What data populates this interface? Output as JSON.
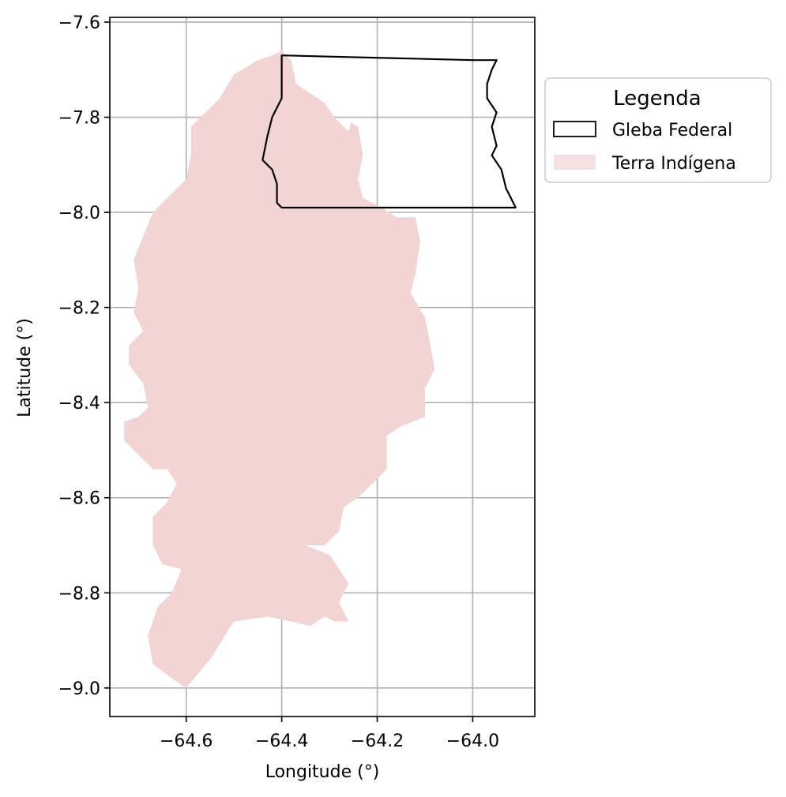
{
  "chart_data": {
    "type": "map",
    "xlabel": "Longitude (°)",
    "ylabel": "Latitude (°)",
    "xlim": [
      -64.76,
      -63.87
    ],
    "ylim": [
      -9.06,
      -7.59
    ],
    "x_ticks": [
      -64.6,
      -64.4,
      -64.2,
      -64.0
    ],
    "y_ticks": [
      -7.6,
      -7.8,
      -8.0,
      -8.2,
      -8.4,
      -8.6,
      -8.8,
      -9.0
    ],
    "x_tick_labels": [
      "−64.6",
      "−64.4",
      "−64.2",
      "−64.0"
    ],
    "y_tick_labels": [
      "−7.6",
      "−7.8",
      "−8.0",
      "−8.2",
      "−8.4",
      "−8.6",
      "−8.8",
      "−9.0"
    ],
    "grid": true,
    "legend": {
      "title": "Legenda",
      "placement": "outside-right-top",
      "entries": [
        {
          "label": "Gleba Federal",
          "style": "outline",
          "color": "#000000"
        },
        {
          "label": "Terra Indígena",
          "style": "fill",
          "color": "#f2d4d4"
        }
      ]
    },
    "layers": [
      {
        "name": "Terra Indígena",
        "fill": "#f2d4d4",
        "coordinates": [
          [
            -64.4,
            -7.66
          ],
          [
            -64.38,
            -7.68
          ],
          [
            -64.37,
            -7.73
          ],
          [
            -64.34,
            -7.75
          ],
          [
            -64.31,
            -7.77
          ],
          [
            -64.29,
            -7.8
          ],
          [
            -64.27,
            -7.82
          ],
          [
            -64.26,
            -7.83
          ],
          [
            -64.255,
            -7.81
          ],
          [
            -64.24,
            -7.82
          ],
          [
            -64.23,
            -7.88
          ],
          [
            -64.24,
            -7.93
          ],
          [
            -64.23,
            -7.97
          ],
          [
            -64.19,
            -7.99
          ],
          [
            -64.16,
            -8.01
          ],
          [
            -64.12,
            -8.01
          ],
          [
            -64.11,
            -8.06
          ],
          [
            -64.12,
            -8.13
          ],
          [
            -64.13,
            -8.17
          ],
          [
            -64.1,
            -8.22
          ],
          [
            -64.09,
            -8.27
          ],
          [
            -64.08,
            -8.33
          ],
          [
            -64.1,
            -8.37
          ],
          [
            -64.1,
            -8.43
          ],
          [
            -64.15,
            -8.45
          ],
          [
            -64.18,
            -8.47
          ],
          [
            -64.18,
            -8.54
          ],
          [
            -64.21,
            -8.57
          ],
          [
            -64.24,
            -8.6
          ],
          [
            -64.27,
            -8.62
          ],
          [
            -64.28,
            -8.67
          ],
          [
            -64.31,
            -8.7
          ],
          [
            -64.35,
            -8.7
          ],
          [
            -64.3,
            -8.72
          ],
          [
            -64.26,
            -8.78
          ],
          [
            -64.28,
            -8.82
          ],
          [
            -64.26,
            -8.86
          ],
          [
            -64.29,
            -8.86
          ],
          [
            -64.31,
            -8.85
          ],
          [
            -64.34,
            -8.87
          ],
          [
            -64.38,
            -8.86
          ],
          [
            -64.43,
            -8.85
          ],
          [
            -64.5,
            -8.86
          ],
          [
            -64.55,
            -8.94
          ],
          [
            -64.6,
            -9.0
          ],
          [
            -64.63,
            -8.98
          ],
          [
            -64.67,
            -8.95
          ],
          [
            -64.68,
            -8.89
          ],
          [
            -64.66,
            -8.83
          ],
          [
            -64.63,
            -8.8
          ],
          [
            -64.61,
            -8.75
          ],
          [
            -64.65,
            -8.74
          ],
          [
            -64.67,
            -8.7
          ],
          [
            -64.67,
            -8.64
          ],
          [
            -64.64,
            -8.61
          ],
          [
            -64.62,
            -8.57
          ],
          [
            -64.64,
            -8.54
          ],
          [
            -64.67,
            -8.54
          ],
          [
            -64.7,
            -8.51
          ],
          [
            -64.73,
            -8.48
          ],
          [
            -64.73,
            -8.44
          ],
          [
            -64.7,
            -8.43
          ],
          [
            -64.68,
            -8.41
          ],
          [
            -64.69,
            -8.36
          ],
          [
            -64.72,
            -8.32
          ],
          [
            -64.72,
            -8.28
          ],
          [
            -64.69,
            -8.25
          ],
          [
            -64.71,
            -8.21
          ],
          [
            -64.7,
            -8.16
          ],
          [
            -64.71,
            -8.1
          ],
          [
            -64.69,
            -8.05
          ],
          [
            -64.67,
            -8.0
          ],
          [
            -64.63,
            -7.96
          ],
          [
            -64.6,
            -7.93
          ],
          [
            -64.59,
            -7.88
          ],
          [
            -64.59,
            -7.82
          ],
          [
            -64.56,
            -7.79
          ],
          [
            -64.53,
            -7.76
          ],
          [
            -64.5,
            -7.71
          ],
          [
            -64.45,
            -7.68
          ],
          [
            -64.42,
            -7.67
          ],
          [
            -64.4,
            -7.66
          ]
        ]
      },
      {
        "name": "Gleba Federal",
        "stroke": "#000000",
        "coordinates": [
          [
            -64.4,
            -7.67
          ],
          [
            -64.0,
            -7.68
          ],
          [
            -63.95,
            -7.68
          ],
          [
            -63.96,
            -7.7
          ],
          [
            -63.97,
            -7.73
          ],
          [
            -63.97,
            -7.76
          ],
          [
            -63.95,
            -7.79
          ],
          [
            -63.96,
            -7.82
          ],
          [
            -63.95,
            -7.86
          ],
          [
            -63.96,
            -7.88
          ],
          [
            -63.94,
            -7.91
          ],
          [
            -63.93,
            -7.95
          ],
          [
            -63.92,
            -7.97
          ],
          [
            -63.91,
            -7.99
          ],
          [
            -64.0,
            -7.99
          ],
          [
            -64.4,
            -7.99
          ],
          [
            -64.41,
            -7.98
          ],
          [
            -64.41,
            -7.94
          ],
          [
            -64.42,
            -7.91
          ],
          [
            -64.44,
            -7.89
          ],
          [
            -64.43,
            -7.84
          ],
          [
            -64.42,
            -7.8
          ],
          [
            -64.4,
            -7.76
          ],
          [
            -64.4,
            -7.72
          ],
          [
            -64.4,
            -7.69
          ],
          [
            -64.4,
            -7.67
          ]
        ]
      }
    ]
  }
}
